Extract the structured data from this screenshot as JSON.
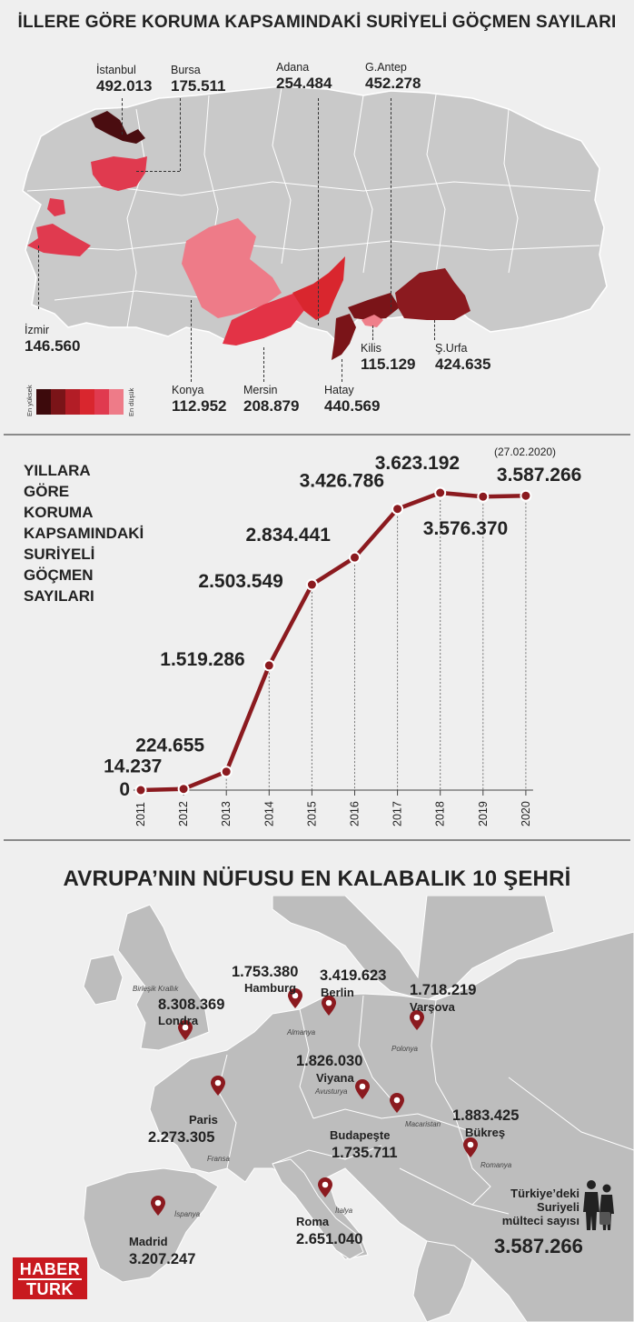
{
  "map_section": {
    "title": "İLLERE GÖRE KORUMA KAPSAMINDAKİ SURİYELİ GÖÇMEN SAYILARI",
    "cities": [
      {
        "id": "istanbul",
        "name": "İstanbul",
        "value": "492.013",
        "color": "#4a0d10"
      },
      {
        "id": "bursa",
        "name": "Bursa",
        "value": "175.511",
        "color": "#e03a4f"
      },
      {
        "id": "adana",
        "name": "Adana",
        "value": "254.484",
        "color": "#d9262e"
      },
      {
        "id": "gantep",
        "name": "G.Antep",
        "value": "452.278",
        "color": "#7a1418"
      },
      {
        "id": "izmir",
        "name": "İzmir",
        "value": "146.560",
        "color": "#e03a4f"
      },
      {
        "id": "konya",
        "name": "Konya",
        "value": "112.952",
        "color": "#ee7b88"
      },
      {
        "id": "mersin",
        "name": "Mersin",
        "value": "208.879",
        "color": "#e33346"
      },
      {
        "id": "hatay",
        "name": "Hatay",
        "value": "440.569",
        "color": "#7a1418"
      },
      {
        "id": "kilis",
        "name": "Kilis",
        "value": "115.129",
        "color": "#ef7f8a"
      },
      {
        "id": "surfa",
        "name": "Ş.Urfa",
        "value": "424.635",
        "color": "#8b1a1f"
      }
    ],
    "legend": {
      "high_label": "En yüksek",
      "low_label": "En düşük",
      "colors": [
        "#3d0a0c",
        "#7a1418",
        "#b31d26",
        "#d9262e",
        "#e03a4f",
        "#ee7b88"
      ]
    }
  },
  "line_section": {
    "title_lines": [
      "YILLARA",
      "GÖRE",
      "KORUMA",
      "KAPSAMINDAKİ",
      "SURİYELİ",
      "GÖÇMEN",
      "SAYILARI"
    ],
    "date_note": "(27.02.2020)"
  },
  "chart_data": {
    "type": "line",
    "title": "YILLARA GÖRE KORUMA KAPSAMINDAKİ SURİYELİ GÖÇMEN SAYILARI",
    "x": [
      "2011",
      "2012",
      "2013",
      "2014",
      "2015",
      "2016",
      "2017",
      "2018",
      "2019",
      "2020"
    ],
    "values": [
      0,
      14237,
      224655,
      1519286,
      2503549,
      2834441,
      3426786,
      3623192,
      3576370,
      3587266
    ],
    "value_labels": [
      "0",
      "14.237",
      "224.655",
      "1.519.286",
      "2.503.549",
      "2.834.441",
      "3.426.786",
      "3.623.192",
      "3.576.370",
      "3.587.266"
    ],
    "line_color": "#8b1a1f",
    "grid": "vertical-dashed"
  },
  "europe_section": {
    "title": "AVRUPA’NIN NÜFUSU EN KALABALIK 10 ŞEHRİ",
    "cities": [
      {
        "id": "londra",
        "name": "Londra",
        "population": "8.308.369",
        "country": "Birleşik Krallık"
      },
      {
        "id": "hamburg",
        "name": "Hamburg",
        "population": "1.753.380",
        "country": "Almanya"
      },
      {
        "id": "berlin",
        "name": "Berlin",
        "population": "3.419.623",
        "country": ""
      },
      {
        "id": "varsova",
        "name": "Varşova",
        "population": "1.718.219",
        "country": "Polonya"
      },
      {
        "id": "paris",
        "name": "Paris",
        "population": "2.273.305",
        "country": "Fransa"
      },
      {
        "id": "viyana",
        "name": "Viyana",
        "population": "1.826.030",
        "country": "Avusturya"
      },
      {
        "id": "budapeste",
        "name": "Budapeşte",
        "population": "1.735.711",
        "country": "Macaristan"
      },
      {
        "id": "bukres",
        "name": "Bükreş",
        "population": "1.883.425",
        "country": "Romanya"
      },
      {
        "id": "roma",
        "name": "Roma",
        "population": "2.651.040",
        "country": "İtalya"
      },
      {
        "id": "madrid",
        "name": "Madrid",
        "population": "3.207.247",
        "country": "İspanya"
      }
    ],
    "turkey_box": {
      "label_lines": [
        "Türkiye’deki",
        "Suriyeli",
        "mülteci sayısı"
      ],
      "value": "3.587.266"
    },
    "pin_color": "#8b1a1f"
  },
  "logo": {
    "line1": "HABER",
    "line2": "TURK"
  }
}
